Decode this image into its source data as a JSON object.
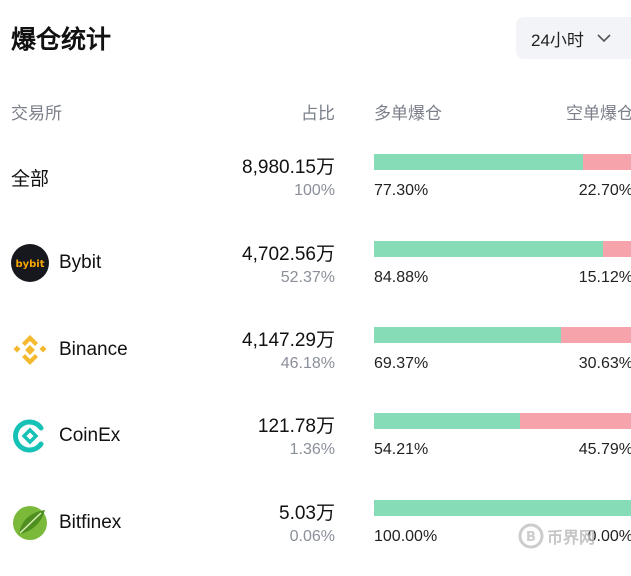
{
  "header": {
    "title": "爆仓统计",
    "period": "24小时"
  },
  "columns": {
    "exchange": "交易所",
    "share": "占比",
    "long": "多单爆仓",
    "short": "空单爆仓"
  },
  "rows": [
    {
      "name": "全部",
      "logo": "",
      "amount": "8,980.15万",
      "share": "100%",
      "long_pct": "77.30%",
      "short_pct": "22.70%",
      "long_value": 77.3
    },
    {
      "name": "Bybit",
      "logo": "bybit-logo",
      "amount": "4,702.56万",
      "share": "52.37%",
      "long_pct": "84.88%",
      "short_pct": "15.12%",
      "long_value": 84.88
    },
    {
      "name": "Binance",
      "logo": "binance-logo",
      "amount": "4,147.29万",
      "share": "46.18%",
      "long_pct": "69.37%",
      "short_pct": "30.63%",
      "long_value": 69.37
    },
    {
      "name": "CoinEx",
      "logo": "coinex-logo",
      "amount": "121.78万",
      "share": "1.36%",
      "long_pct": "54.21%",
      "short_pct": "45.79%",
      "long_value": 54.21
    },
    {
      "name": "Bitfinex",
      "logo": "bitfinex-logo",
      "amount": "5.03万",
      "share": "0.06%",
      "long_pct": "100.00%",
      "short_pct": "0.00%",
      "long_value": 100.0
    }
  ],
  "colors": {
    "long": "#85dcb6",
    "short": "#f7a3ab"
  },
  "watermark": "币界网"
}
